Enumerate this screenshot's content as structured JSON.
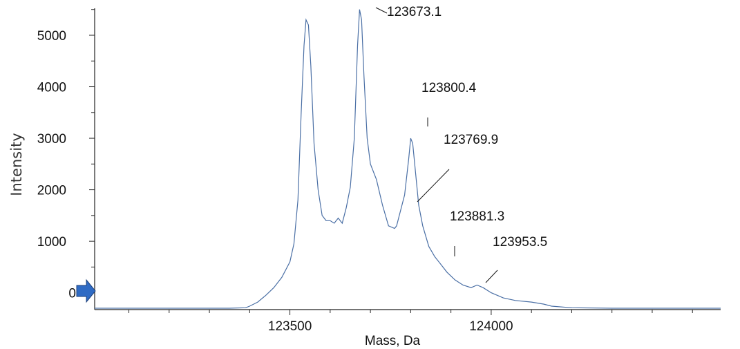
{
  "chart_data": {
    "type": "line",
    "title": "",
    "xlabel": "Mass, Da",
    "ylabel": "Intensity",
    "xlim": [
      123015,
      124570
    ],
    "ylim": [
      -300,
      5550
    ],
    "x_ticks": [
      123500,
      124000
    ],
    "x_tick_labels": [
      "123500",
      "124000"
    ],
    "y_ticks": [
      0,
      1000,
      2000,
      3000,
      4000,
      5000
    ],
    "y_tick_labels": [
      "0",
      "1000",
      "2000",
      "3000",
      "4000",
      "5000"
    ],
    "grid": false,
    "legend": "none",
    "line_color": "#4a6fa5",
    "marker_color": "#2f6bc4",
    "series": [
      {
        "x": [
          123015,
          123200,
          123350,
          123390,
          123400,
          123420,
          123440,
          123460,
          123480,
          123500,
          123510,
          123520,
          123528,
          123535,
          123540,
          123546,
          123552,
          123560,
          123570,
          123580,
          123590,
          123600,
          123610,
          123620,
          123630,
          123640,
          123650,
          123660,
          123668,
          123673,
          123678,
          123684,
          123692,
          123700,
          123715,
          123730,
          123745,
          123760,
          123765,
          123775,
          123785,
          123795,
          123800,
          123805,
          123810,
          123820,
          123830,
          123845,
          123860,
          123875,
          123890,
          123910,
          123930,
          123950,
          123965,
          123980,
          124000,
          124030,
          124060,
          124100,
          124130,
          124150,
          124200,
          124300,
          124400,
          124570
        ],
        "y": [
          -300,
          -300,
          -300,
          -290,
          -260,
          -180,
          -50,
          100,
          300,
          600,
          950,
          1800,
          3500,
          4800,
          5300,
          5200,
          4400,
          2900,
          2000,
          1500,
          1400,
          1400,
          1350,
          1450,
          1350,
          1650,
          2050,
          3000,
          4800,
          5500,
          5300,
          4200,
          3000,
          2500,
          2200,
          1700,
          1300,
          1250,
          1300,
          1600,
          1900,
          2600,
          3000,
          2900,
          2500,
          1700,
          1300,
          900,
          700,
          550,
          400,
          250,
          150,
          100,
          150,
          100,
          0,
          -100,
          -150,
          -180,
          -220,
          -260,
          -290,
          -300,
          -300,
          -300
        ]
      }
    ],
    "annotations": [
      {
        "text": "123673.1",
        "x": 123673.1
      },
      {
        "text": "123800.4",
        "x": 123800.4
      },
      {
        "text": "123769.9",
        "x": 123769.9
      },
      {
        "text": "123881.3",
        "x": 123881.3
      },
      {
        "text": "123953.5",
        "x": 123953.5
      }
    ]
  }
}
